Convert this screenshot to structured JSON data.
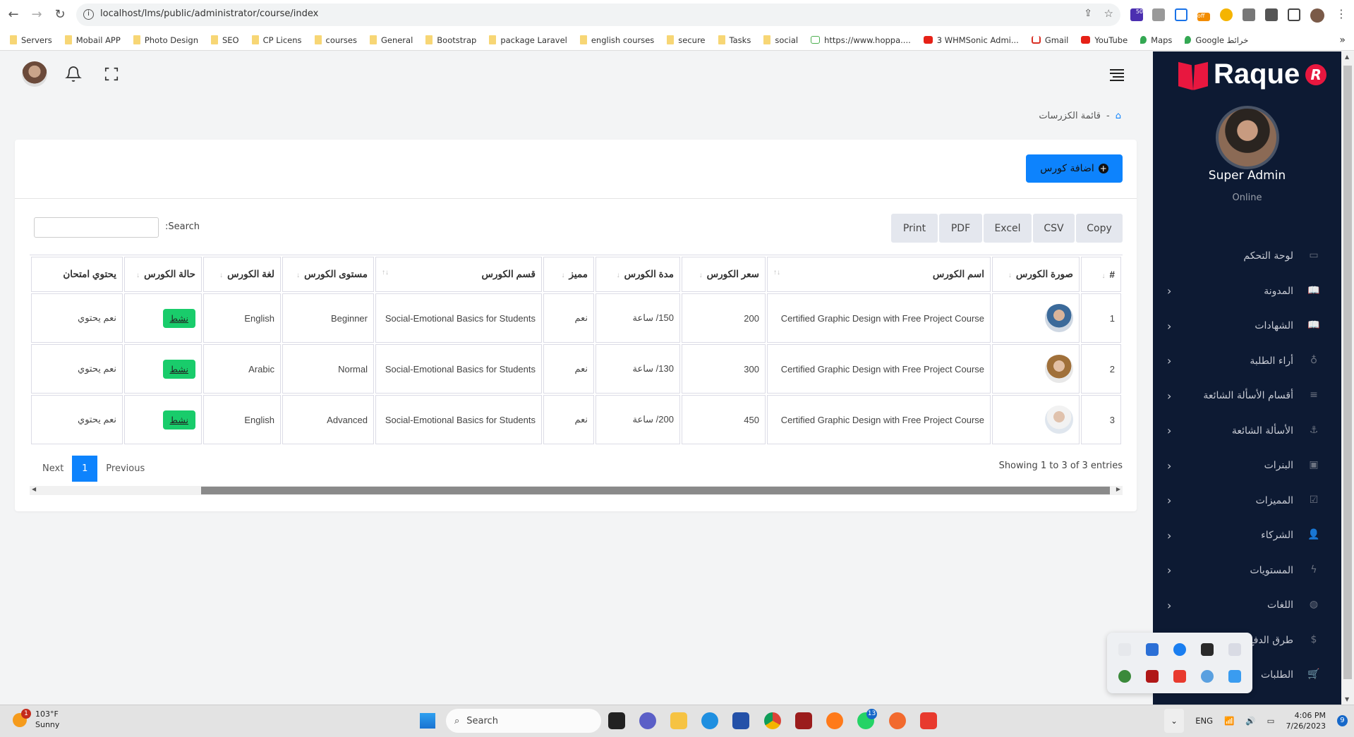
{
  "browser": {
    "url": "localhost/lms/public/administrator/course/index",
    "bookmarks": [
      "Servers",
      "Mobail APP",
      "Photo Design",
      "SEO",
      "CP Licens",
      "courses",
      "General",
      "Bootstrap",
      "package Laravel",
      "english courses",
      "secure",
      "Tasks",
      "social",
      "https://www.hoppa....",
      "3 WHMSonic Admi...",
      "Gmail",
      "YouTube",
      "Maps",
      "Google خرائط"
    ],
    "more": "»",
    "ext_badges": [
      "50",
      "off"
    ]
  },
  "breadcrumb": {
    "home_icon": "home-icon",
    "separator": "-",
    "current": "قائمة الكزرسات"
  },
  "card": {
    "add_button": "اضافة كورس",
    "search_label": ":Search",
    "search_value": "",
    "export_buttons": [
      "Print",
      "PDF",
      "Excel",
      "CSV",
      "Copy"
    ],
    "table": {
      "headers": [
        "#",
        "صورة الكورس",
        "اسم الكورس",
        "سعر الكورس",
        "مدة الكورس",
        "مميز",
        "قسم الكورس",
        "مستوى الكورس",
        "لغة الكورس",
        "حالة الكورس",
        "يحتوي امتحان"
      ],
      "rows": [
        {
          "num": "1",
          "name": "Certified Graphic Design with Free Project Course",
          "price": "200",
          "duration": "150/ ساعة",
          "featured": "نعم",
          "section": "Social-Emotional Basics for Students",
          "level": "Beginner",
          "language": "English",
          "status": "نشط",
          "contains": "نعم يحتوي"
        },
        {
          "num": "2",
          "name": "Certified Graphic Design with Free Project Course",
          "price": "300",
          "duration": "130/ ساعة",
          "featured": "نعم",
          "section": "Social-Emotional Basics for Students",
          "level": "Normal",
          "language": "Arabic",
          "status": "نشط",
          "contains": "نعم يحتوي"
        },
        {
          "num": "3",
          "name": "Certified Graphic Design with Free Project Course",
          "price": "450",
          "duration": "200/ ساعة",
          "featured": "نعم",
          "section": "Social-Emotional Basics for Students",
          "level": "Advanced",
          "language": "English",
          "status": "نشط",
          "contains": "نعم يحتوي"
        }
      ]
    },
    "info": "Showing 1 to 3 of 3 entries",
    "pagination": {
      "next": "Next",
      "current": "1",
      "previous": "Previous"
    }
  },
  "sidebar": {
    "brand": "Raque",
    "brand_mark": "R",
    "user_name": "Super Admin",
    "user_status": "Online",
    "items": [
      {
        "label": "لوحة التحكم",
        "icon": "monitor-icon",
        "chevron": false
      },
      {
        "label": "المدونة",
        "icon": "book-icon",
        "chevron": true
      },
      {
        "label": "الشهادات",
        "icon": "book-icon",
        "chevron": true
      },
      {
        "label": "أراء الطلبة",
        "icon": "award-icon",
        "chevron": true
      },
      {
        "label": "أقسام الأسألة الشائعة",
        "icon": "align-icon",
        "chevron": true
      },
      {
        "label": "الأسألة الشائعة",
        "icon": "anchor-icon",
        "chevron": true
      },
      {
        "label": "البنرات",
        "icon": "image-icon",
        "chevron": true
      },
      {
        "label": "المميزات",
        "icon": "check-square-icon",
        "chevron": true
      },
      {
        "label": "الشركاء",
        "icon": "user-check-icon",
        "chevron": true
      },
      {
        "label": "المستويات",
        "icon": "zap-icon",
        "chevron": true
      },
      {
        "label": "اللغات",
        "icon": "globe-icon",
        "chevron": true
      },
      {
        "label": "طرق الدفع",
        "icon": "dollar-icon",
        "chevron": true
      },
      {
        "label": "الطلبات",
        "icon": "cart-icon",
        "chevron": false
      }
    ]
  },
  "taskbar": {
    "weather_temp": "103°F",
    "weather_desc": "Sunny",
    "weather_badge": "1",
    "search_placeholder": "Search",
    "whatsapp_badge": "13",
    "language": "ENG",
    "time": "4:06 PM",
    "date": "7/26/2023",
    "notifications": "9"
  },
  "colors": {
    "primary": "#0d83fd",
    "sidebar": "#0d1a33",
    "success": "#19cc6b",
    "brand_red": "#e8173f"
  }
}
